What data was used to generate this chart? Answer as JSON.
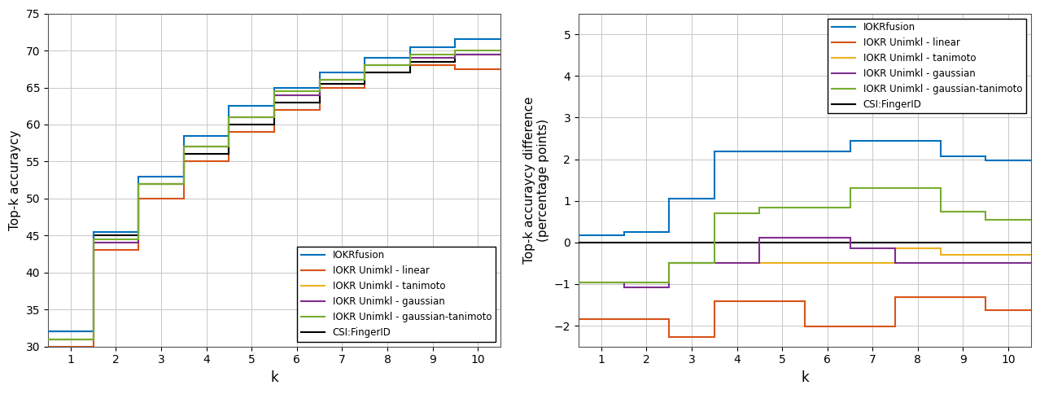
{
  "k": [
    1,
    2,
    3,
    4,
    5,
    6,
    7,
    8,
    9,
    10
  ],
  "left_ylim": [
    30,
    75
  ],
  "left_yticks": [
    30,
    35,
    40,
    45,
    50,
    55,
    60,
    65,
    70,
    75
  ],
  "right_ylim": [
    -2.5,
    5.5
  ],
  "right_yticks": [
    -2,
    -1,
    0,
    1,
    2,
    3,
    4,
    5
  ],
  "left_ylabel": "Top-k accuraycy",
  "right_ylabel": "Top-k accuraycy difference\n(percentage points)",
  "xlabel": "k",
  "series": {
    "IOKRfusion": {
      "color": "#0072BD",
      "lv": [
        32.0,
        45.5,
        53.0,
        58.5,
        62.5,
        65.0,
        67.0,
        69.0,
        70.5,
        71.5
      ]
    },
    "IOKR Unimkl - linear": {
      "color": "#D95319",
      "lv": [
        30.0,
        43.0,
        50.0,
        55.0,
        59.0,
        62.0,
        65.0,
        67.0,
        68.0,
        67.5
      ]
    },
    "IOKR Unimkl - tanimoto": {
      "color": "#EDB120",
      "lv": [
        31.0,
        44.0,
        52.0,
        57.0,
        61.0,
        64.0,
        66.0,
        68.0,
        69.0,
        69.5
      ]
    },
    "IOKR Unimkl - gaussian": {
      "color": "#7E2F8E",
      "lv": [
        31.0,
        44.0,
        52.0,
        57.0,
        61.0,
        64.0,
        66.0,
        68.0,
        69.0,
        69.5
      ]
    },
    "IOKR Unimkl - gaussian-tanimoto": {
      "color": "#77AC30",
      "lv": [
        31.0,
        44.5,
        52.0,
        57.0,
        61.0,
        64.5,
        66.0,
        68.0,
        69.5,
        70.0
      ]
    },
    "CSI:FingerID": {
      "color": "#000000",
      "lv": [
        32.0,
        45.0,
        52.0,
        56.0,
        60.0,
        63.0,
        65.5,
        67.0,
        68.5,
        69.5
      ]
    }
  },
  "right_series": {
    "IOKRfusion": {
      "color": "#0072BD",
      "rv": [
        0.17,
        0.26,
        1.05,
        2.19,
        2.19,
        2.19,
        2.44,
        2.44,
        2.07,
        1.97
      ]
    },
    "IOKR Unimkl - linear": {
      "color": "#D95319",
      "rv": [
        -1.84,
        -1.84,
        -2.27,
        -1.42,
        -1.42,
        -2.02,
        -2.02,
        -1.32,
        -1.32,
        -1.63
      ]
    },
    "IOKR Unimkl - tanimoto": {
      "color": "#EDB120",
      "rv": [
        -0.97,
        -0.97,
        -0.49,
        -0.49,
        -0.49,
        -0.49,
        -0.49,
        -0.15,
        -0.3,
        -0.3
      ]
    },
    "IOKR Unimkl - gaussian": {
      "color": "#7E2F8E",
      "rv": [
        -0.97,
        -1.08,
        -0.49,
        -0.49,
        0.12,
        0.12,
        -0.15,
        -0.49,
        -0.49,
        -0.49
      ]
    },
    "IOKR Unimkl - gaussian-tanimoto": {
      "color": "#77AC30",
      "rv": [
        -0.97,
        -0.97,
        -0.49,
        0.7,
        0.84,
        0.84,
        1.3,
        1.3,
        0.73,
        0.55
      ]
    },
    "CSI:FingerID": {
      "color": "#000000",
      "rv": [
        0,
        0,
        0,
        0,
        0,
        0,
        0,
        0,
        0,
        0
      ]
    }
  },
  "legend_order": [
    "IOKRfusion",
    "IOKR Unimkl - linear",
    "IOKR Unimkl - tanimoto",
    "IOKR Unimkl - gaussian",
    "IOKR Unimkl - gaussian-tanimoto",
    "CSI:FingerID"
  ],
  "linewidth": 1.5,
  "figsize": [
    12.78,
    4.84
  ],
  "dpi": 100
}
